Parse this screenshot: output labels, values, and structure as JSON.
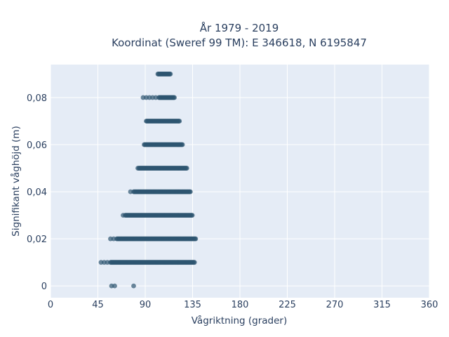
{
  "chart_data": {
    "type": "scatter",
    "title_line1": "År 1979 - 2019",
    "title_line2": "Koordinat (Sweref 99 TM): E 346618, N 6195847",
    "xlabel": "Vågriktning (grader)",
    "ylabel": "Signifikant våghöjd (m)",
    "xlim": [
      0,
      360
    ],
    "ylim": [
      -0.005,
      0.094
    ],
    "x_ticks": [
      0,
      45,
      90,
      135,
      180,
      225,
      270,
      315,
      360
    ],
    "x_tick_labels": [
      "0",
      "45",
      "90",
      "135",
      "180",
      "225",
      "270",
      "315",
      "360"
    ],
    "y_ticks": [
      0,
      0.02,
      0.04,
      0.06,
      0.08
    ],
    "y_tick_labels": [
      "0",
      "0,02",
      "0,04",
      "0,06",
      "0,08"
    ],
    "grid": true,
    "marker_color": "#2d5570",
    "background_color": "#e5ecf6",
    "point_bands": [
      {
        "y": 0.0,
        "points": [
          58,
          61,
          79
        ]
      },
      {
        "y": 0.01,
        "from": 48,
        "to": 137,
        "dense_from": 57
      },
      {
        "y": 0.02,
        "from": 57,
        "to": 138,
        "dense_from": 63
      },
      {
        "y": 0.03,
        "from": 69,
        "to": 135,
        "dense_from": 71
      },
      {
        "y": 0.04,
        "from": 76,
        "to": 133,
        "dense_from": 79
      },
      {
        "y": 0.05,
        "from": 83,
        "to": 130,
        "dense_from": 84
      },
      {
        "y": 0.06,
        "from": 89,
        "to": 126,
        "dense_from": 89
      },
      {
        "y": 0.07,
        "from": 91,
        "to": 123,
        "dense_from": 91
      },
      {
        "y": 0.08,
        "from": 88,
        "to": 118,
        "dense_from": 103
      },
      {
        "y": 0.09,
        "from": 102,
        "to": 114,
        "dense_from": 102
      }
    ]
  }
}
